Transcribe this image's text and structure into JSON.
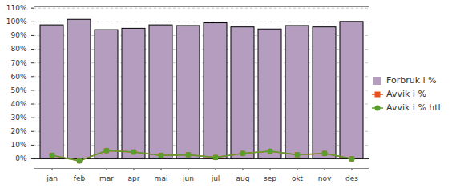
{
  "chart_data": {
    "type": "bar",
    "categories": [
      "jan",
      "feb",
      "mar",
      "apr",
      "mai",
      "jun",
      "jul",
      "aug",
      "sep",
      "okt",
      "nov",
      "des"
    ],
    "series": [
      {
        "name": "Forbruk i %",
        "type": "bar",
        "color": "#b49dbf",
        "values": [
          97.5,
          101.5,
          94,
          95,
          97.5,
          97,
          99,
          96,
          94.5,
          97,
          96,
          100
        ]
      },
      {
        "name": "Avvik i %",
        "type": "line",
        "color": "#e8501e",
        "marker": "square",
        "values": [
          2.5,
          -1.5,
          6,
          5,
          2.5,
          3,
          1,
          4,
          5.5,
          3,
          4,
          0
        ]
      },
      {
        "name": "Avvik i % htl",
        "type": "line",
        "color": "#5a9e2e",
        "marker": "circle",
        "values": [
          2.5,
          -1.5,
          6,
          5,
          2.5,
          3,
          1,
          4,
          5.5,
          3,
          4,
          0
        ]
      }
    ],
    "ylim": [
      -7,
      111
    ],
    "yticks": [
      {
        "value": 0,
        "label": "0%"
      },
      {
        "value": 10,
        "label": "10%"
      },
      {
        "value": 20,
        "label": "20%"
      },
      {
        "value": 30,
        "label": "30%"
      },
      {
        "value": 40,
        "label": "40%"
      },
      {
        "value": 50,
        "label": "50%"
      },
      {
        "value": 60,
        "label": "60%"
      },
      {
        "value": 70,
        "label": "70%"
      },
      {
        "value": 80,
        "label": "80%"
      },
      {
        "value": 90,
        "label": "90%"
      },
      {
        "value": 100,
        "label": "100%"
      },
      {
        "value": 110,
        "label": "110%"
      }
    ],
    "grid": true,
    "legend": "right"
  }
}
